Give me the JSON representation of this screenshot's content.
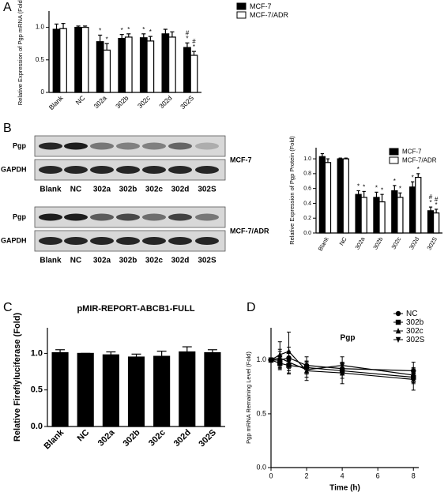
{
  "chart_data": [
    {
      "type": "bar",
      "panel": "A",
      "ylabel": "Relative Expression of Pgp mRNA (Fold)",
      "categories": [
        "Blank",
        "NC",
        "302a",
        "302b",
        "302c",
        "302d",
        "302S"
      ],
      "ylim": [
        0,
        1.25
      ],
      "yticks": [
        0,
        {
          "value": 0.5,
          "label": "0.5"
        },
        {
          "value": 1,
          "label": "1.0"
        }
      ],
      "series": [
        {
          "name": "MCF-7",
          "color": "#000000",
          "values": [
            0.97,
            1.0,
            0.78,
            0.83,
            0.84,
            0.9,
            0.69
          ],
          "errors": [
            0.08,
            0.02,
            0.1,
            0.06,
            0.06,
            0.07,
            0.07
          ],
          "annotations": [
            null,
            null,
            [
              "*"
            ],
            [
              "*"
            ],
            [
              "*"
            ],
            null,
            [
              "#",
              "*"
            ]
          ]
        },
        {
          "name": "MCF-7/ADR",
          "color": "#ffffff",
          "values": [
            0.98,
            1.0,
            0.65,
            0.85,
            0.79,
            0.85,
            0.57
          ],
          "errors": [
            0.08,
            0.02,
            0.1,
            0.05,
            0.07,
            0.08,
            0.06
          ],
          "annotations": [
            null,
            null,
            [
              "*"
            ],
            [
              "*"
            ],
            [
              "*"
            ],
            null,
            [
              "#",
              "*"
            ]
          ]
        }
      ]
    },
    {
      "type": "bar",
      "panel": "B",
      "ylabel": "Relative Expression of Pgp Protein (Fold)",
      "categories": [
        "Blank",
        "NC",
        "302a",
        "302b",
        "302c",
        "302d",
        "302S"
      ],
      "ylim": [
        0,
        1.15
      ],
      "yticks": [
        {
          "value": 0,
          "label": "0.0"
        },
        {
          "value": 0.2,
          "label": "0.2"
        },
        {
          "value": 0.4,
          "label": "0.4"
        },
        {
          "value": 0.6,
          "label": "0.6"
        },
        {
          "value": 0.8,
          "label": "0.8"
        },
        {
          "value": 1,
          "label": "1.0"
        }
      ],
      "series": [
        {
          "name": "MCF-7",
          "color": "#000000",
          "values": [
            1.03,
            1.0,
            0.52,
            0.48,
            0.57,
            0.62,
            0.3
          ],
          "errors": [
            0.04,
            0.01,
            0.05,
            0.07,
            0.07,
            0.07,
            0.05
          ],
          "annotations": [
            null,
            null,
            [
              "*"
            ],
            [
              "*"
            ],
            [
              "*"
            ],
            [
              "*"
            ],
            [
              "#",
              "*"
            ]
          ]
        },
        {
          "name": "MCF-7/ADR",
          "color": "#ffffff",
          "values": [
            0.95,
            1.0,
            0.48,
            0.42,
            0.48,
            0.75,
            0.27
          ],
          "errors": [
            0.05,
            0.01,
            0.08,
            0.1,
            0.06,
            0.05,
            0.05
          ],
          "annotations": [
            null,
            null,
            [
              "*"
            ],
            [
              "*"
            ],
            [
              "*"
            ],
            [
              "*"
            ],
            [
              "#",
              "*"
            ]
          ]
        }
      ]
    },
    {
      "type": "bar",
      "panel": "C",
      "title": "pMIR-REPORT-ABCB1-FULL",
      "ylabel": "Relative Fireflyluciferase (Fold)",
      "categories": [
        "Blank",
        "NC",
        "302a",
        "302b",
        "302c",
        "302d",
        "302S"
      ],
      "ylim": [
        0,
        1.35
      ],
      "yticks": [
        {
          "value": 0,
          "label": "0.0"
        },
        {
          "value": 0.5,
          "label": "0.5"
        },
        {
          "value": 1,
          "label": "1.0"
        }
      ],
      "series": [
        {
          "color": "#000000",
          "values": [
            1.01,
            1.0,
            0.98,
            0.95,
            0.96,
            1.02,
            1.01
          ],
          "errors": [
            0.04,
            0.0,
            0.04,
            0.04,
            0.07,
            0.07,
            0.04
          ]
        }
      ]
    },
    {
      "type": "line",
      "panel": "D",
      "title": "Pgp",
      "xlabel": "Time (h)",
      "ylabel": "Pgp mRNA Remaining Level (Fold)",
      "x": [
        0,
        0.5,
        1,
        2,
        4,
        8
      ],
      "xlim": [
        0,
        8.3
      ],
      "xticks": [
        0,
        2,
        4,
        6,
        8
      ],
      "ylim": [
        0,
        1.3
      ],
      "yticks": [
        {
          "value": 0,
          "label": "0.0"
        },
        {
          "value": 0.5,
          "label": "0.5"
        },
        {
          "value": 1,
          "label": "1.0"
        }
      ],
      "series": [
        {
          "name": "NC",
          "color": "#000000",
          "marker": "circle",
          "values": [
            1.0,
            1.0,
            1.02,
            0.95,
            0.92,
            0.9
          ],
          "errors": [
            0.02,
            0.08,
            0.1,
            0.08,
            0.06,
            0.08
          ]
        },
        {
          "name": "302b",
          "color": "#000000",
          "marker": "square",
          "values": [
            1.0,
            0.97,
            0.95,
            0.93,
            0.9,
            0.84
          ],
          "errors": [
            0.02,
            0.06,
            0.08,
            0.06,
            0.07,
            0.06
          ]
        },
        {
          "name": "302c",
          "color": "#000000",
          "marker": "triangle",
          "values": [
            1.0,
            1.05,
            1.08,
            0.9,
            0.88,
            0.82
          ],
          "errors": [
            0.02,
            0.12,
            0.18,
            0.09,
            0.1,
            0.1
          ]
        },
        {
          "name": "302S",
          "color": "#000000",
          "marker": "triangle-down",
          "values": [
            1.0,
            1.02,
            0.98,
            0.91,
            0.95,
            0.86
          ],
          "errors": [
            0.02,
            0.08,
            0.1,
            0.07,
            0.08,
            0.07
          ]
        }
      ]
    }
  ],
  "blot": {
    "panels": [
      {
        "cell_line": "MCF-7",
        "proteins": [
          "Pgp",
          "GAPDH"
        ],
        "lanes": [
          "Blank",
          "NC",
          "302a",
          "302b",
          "302c",
          "302d",
          "302S"
        ]
      },
      {
        "cell_line": "MCF-7/ADR",
        "proteins": [
          "Pgp",
          "GAPDH"
        ],
        "lanes": [
          "Blank",
          "NC",
          "302a",
          "302b",
          "302c",
          "302d",
          "302S"
        ]
      }
    ]
  }
}
